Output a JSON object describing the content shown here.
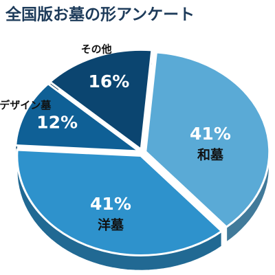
{
  "chart_data": {
    "type": "pie",
    "title": "全国版お墓の形アンケート",
    "categories": [
      "和墓",
      "洋墓",
      "デザイン墓",
      "その他"
    ],
    "values": [
      41,
      41,
      12,
      16
    ],
    "value_labels": [
      "41%",
      "41%",
      "12%",
      "16%"
    ],
    "colors": [
      "#5aaad6",
      "#2e92cc",
      "#0f6096",
      "#0b4570"
    ]
  }
}
